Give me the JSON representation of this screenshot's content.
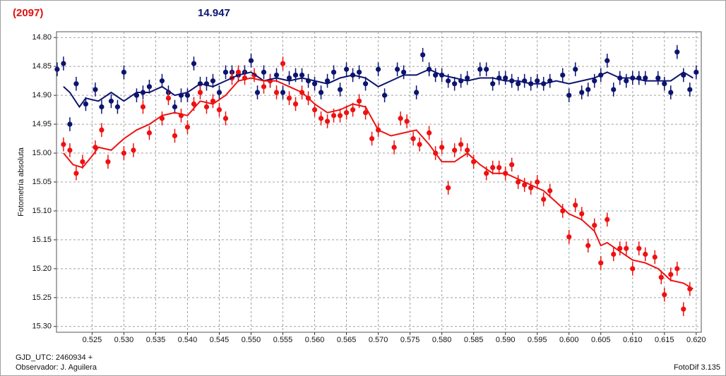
{
  "chart_data": {
    "type": "scatter",
    "title": "(2097)",
    "subtitle": "14.947",
    "ylabel": "Fotometría absoluta",
    "annotations": [
      "GJD_UTC: 2460934 +",
      "Observador: J. Aguilera",
      "FotoDif 3.135"
    ],
    "xlim": [
      0.5194,
      0.6208
    ],
    "ylim": [
      14.79,
      15.31
    ],
    "y_inverted": true,
    "grid": true,
    "xticks": [
      0.525,
      {
        "value": 0.53,
        "label": "0.530"
      },
      0.535,
      {
        "value": 0.54,
        "label": "0.540"
      },
      0.545,
      {
        "value": 0.55,
        "label": "0.550"
      },
      0.555,
      {
        "value": 0.56,
        "label": "0.560"
      },
      0.565,
      {
        "value": 0.57,
        "label": "0.570"
      },
      0.575,
      {
        "value": 0.58,
        "label": "0.580"
      },
      0.585,
      {
        "value": 0.59,
        "label": "0.590"
      },
      0.595,
      {
        "value": 0.6,
        "label": "0.600"
      },
      0.605,
      {
        "value": 0.61,
        "label": "0.610"
      },
      0.615,
      {
        "value": 0.62,
        "label": "0.620"
      }
    ],
    "yticks": [
      {
        "value": 14.8,
        "label": "14.80"
      },
      14.85,
      {
        "value": 14.9,
        "label": "14.90"
      },
      14.95,
      {
        "value": 15,
        "label": "15.00"
      },
      15.05,
      {
        "value": 15.1,
        "label": "15.10"
      },
      15.15,
      {
        "value": 15.2,
        "label": "15.20"
      },
      15.25,
      {
        "value": 15.3,
        "label": "15.30"
      }
    ],
    "series": [
      {
        "style": "points",
        "color": "#0c1470",
        "error": 0.012,
        "x": [
          0.5195,
          0.5205,
          0.5215,
          0.5225,
          0.524,
          0.5255,
          0.5265,
          0.528,
          0.529,
          0.53,
          0.532,
          0.533,
          0.534,
          0.536,
          0.537,
          0.538,
          0.539,
          0.54,
          0.541,
          0.542,
          0.543,
          0.544,
          0.545,
          0.546,
          0.547,
          0.548,
          0.549,
          0.55,
          0.551,
          0.552,
          0.553,
          0.554,
          0.555,
          0.556,
          0.557,
          0.558,
          0.559,
          0.56,
          0.561,
          0.562,
          0.563,
          0.564,
          0.565,
          0.566,
          0.567,
          0.568,
          0.57,
          0.571,
          0.573,
          0.574,
          0.576,
          0.577,
          0.578,
          0.579,
          0.58,
          0.581,
          0.582,
          0.583,
          0.584,
          0.586,
          0.587,
          0.588,
          0.589,
          0.59,
          0.591,
          0.592,
          0.593,
          0.594,
          0.595,
          0.596,
          0.597,
          0.599,
          0.6,
          0.601,
          0.602,
          0.603,
          0.604,
          0.605,
          0.606,
          0.607,
          0.608,
          0.609,
          0.61,
          0.611,
          0.612,
          0.614,
          0.615,
          0.616,
          0.617,
          0.618,
          0.619,
          0.62
        ],
        "values": [
          14.855,
          14.845,
          14.95,
          14.88,
          14.915,
          14.89,
          14.92,
          14.91,
          14.92,
          14.86,
          14.9,
          14.895,
          14.885,
          14.875,
          14.895,
          14.92,
          14.9,
          14.9,
          14.845,
          14.88,
          14.88,
          14.875,
          14.895,
          14.86,
          14.86,
          14.865,
          14.86,
          14.84,
          14.895,
          14.86,
          14.875,
          14.865,
          14.895,
          14.87,
          14.865,
          14.865,
          14.875,
          14.88,
          14.895,
          14.875,
          14.86,
          14.89,
          14.855,
          14.865,
          14.86,
          14.88,
          14.855,
          14.9,
          14.855,
          14.86,
          14.895,
          14.83,
          14.855,
          14.865,
          14.865,
          14.875,
          14.88,
          14.875,
          14.87,
          14.855,
          14.855,
          14.88,
          14.87,
          14.87,
          14.875,
          14.88,
          14.875,
          14.88,
          14.875,
          14.88,
          14.875,
          14.865,
          14.9,
          14.855,
          14.895,
          14.89,
          14.875,
          14.865,
          14.84,
          14.89,
          14.87,
          14.875,
          14.87,
          14.87,
          14.87,
          14.87,
          14.88,
          14.895,
          14.825,
          14.865,
          14.89,
          14.86
        ]
      },
      {
        "style": "points",
        "color": "#ee1111",
        "error": 0.012,
        "x": [
          0.5205,
          0.5215,
          0.5225,
          0.5235,
          0.5255,
          0.5265,
          0.5275,
          0.53,
          0.5315,
          0.533,
          0.534,
          0.536,
          0.537,
          0.538,
          0.539,
          0.54,
          0.541,
          0.542,
          0.543,
          0.544,
          0.545,
          0.546,
          0.547,
          0.548,
          0.549,
          0.5505,
          0.552,
          0.553,
          0.554,
          0.555,
          0.556,
          0.557,
          0.558,
          0.559,
          0.56,
          0.561,
          0.562,
          0.563,
          0.564,
          0.565,
          0.566,
          0.567,
          0.568,
          0.569,
          0.57,
          0.5725,
          0.5735,
          0.5745,
          0.5755,
          0.5765,
          0.578,
          0.579,
          0.58,
          0.581,
          0.582,
          0.583,
          0.584,
          0.585,
          0.587,
          0.588,
          0.589,
          0.59,
          0.591,
          0.592,
          0.593,
          0.594,
          0.595,
          0.596,
          0.597,
          0.599,
          0.6,
          0.601,
          0.602,
          0.603,
          0.604,
          0.605,
          0.606,
          0.607,
          0.608,
          0.609,
          0.61,
          0.611,
          0.612,
          0.6135,
          0.6145,
          0.615,
          0.616,
          0.617,
          0.618,
          0.619
        ],
        "values": [
          14.985,
          14.995,
          15.035,
          15.015,
          14.99,
          14.96,
          15.015,
          15.0,
          14.995,
          14.92,
          14.965,
          14.94,
          14.905,
          14.97,
          14.935,
          14.955,
          14.915,
          14.895,
          14.92,
          14.91,
          14.925,
          14.94,
          14.87,
          14.86,
          14.87,
          14.865,
          14.885,
          14.875,
          14.895,
          14.845,
          14.905,
          14.915,
          14.895,
          14.905,
          14.925,
          14.94,
          14.945,
          14.935,
          14.935,
          14.93,
          14.925,
          14.91,
          14.93,
          14.975,
          14.96,
          14.99,
          14.94,
          14.945,
          14.975,
          14.985,
          14.965,
          15.0,
          14.99,
          15.06,
          14.995,
          14.985,
          14.995,
          15.015,
          15.035,
          15.025,
          15.025,
          15.035,
          15.02,
          15.05,
          15.055,
          15.06,
          15.05,
          15.08,
          15.065,
          15.1,
          15.145,
          15.09,
          15.105,
          15.16,
          15.125,
          15.19,
          15.115,
          15.175,
          15.165,
          15.165,
          15.2,
          15.165,
          15.175,
          15.18,
          15.215,
          15.245,
          15.21,
          15.2,
          15.27,
          15.235
        ]
      },
      {
        "style": "line",
        "color": "#0c1470",
        "x": [
          0.5205,
          0.5215,
          0.523,
          0.524,
          0.526,
          0.528,
          0.53,
          0.532,
          0.534,
          0.536,
          0.538,
          0.54,
          0.542,
          0.544,
          0.546,
          0.548,
          0.55,
          0.552,
          0.554,
          0.556,
          0.558,
          0.56,
          0.562,
          0.564,
          0.566,
          0.568,
          0.57,
          0.572,
          0.574,
          0.576,
          0.578,
          0.58,
          0.582,
          0.584,
          0.586,
          0.588,
          0.59,
          0.592,
          0.594,
          0.596,
          0.598,
          0.6,
          0.602,
          0.604,
          0.606,
          0.608,
          0.61,
          0.612,
          0.614,
          0.616,
          0.618,
          0.6195
        ],
        "values": [
          14.885,
          14.895,
          14.92,
          14.905,
          14.91,
          14.895,
          14.91,
          14.895,
          14.895,
          14.885,
          14.9,
          14.895,
          14.88,
          14.885,
          14.875,
          14.865,
          14.86,
          14.875,
          14.87,
          14.875,
          14.87,
          14.875,
          14.88,
          14.87,
          14.865,
          14.87,
          14.885,
          14.875,
          14.865,
          14.865,
          14.855,
          14.865,
          14.87,
          14.875,
          14.87,
          14.87,
          14.875,
          14.875,
          14.88,
          14.88,
          14.875,
          14.88,
          14.875,
          14.87,
          14.86,
          14.87,
          14.87,
          14.875,
          14.875,
          14.875,
          14.86,
          14.87
        ]
      },
      {
        "style": "line",
        "color": "#ee1111",
        "x": [
          0.5205,
          0.522,
          0.5235,
          0.525,
          0.526,
          0.528,
          0.53,
          0.532,
          0.534,
          0.536,
          0.538,
          0.54,
          0.542,
          0.544,
          0.546,
          0.548,
          0.55,
          0.552,
          0.554,
          0.556,
          0.558,
          0.56,
          0.562,
          0.564,
          0.566,
          0.568,
          0.57,
          0.572,
          0.574,
          0.576,
          0.578,
          0.58,
          0.582,
          0.584,
          0.586,
          0.588,
          0.59,
          0.592,
          0.594,
          0.596,
          0.598,
          0.6,
          0.602,
          0.604,
          0.605,
          0.606,
          0.608,
          0.61,
          0.612,
          0.614,
          0.616,
          0.618,
          0.6195
        ],
        "values": [
          15.0,
          15.02,
          15.025,
          15.005,
          14.99,
          14.995,
          14.975,
          14.96,
          14.95,
          14.935,
          14.93,
          14.935,
          14.91,
          14.915,
          14.9,
          14.875,
          14.87,
          14.875,
          14.875,
          14.885,
          14.895,
          14.915,
          14.93,
          14.925,
          14.915,
          14.92,
          14.96,
          14.97,
          14.965,
          14.96,
          14.985,
          15.015,
          15.015,
          15.0,
          15.02,
          15.035,
          15.035,
          15.045,
          15.055,
          15.065,
          15.085,
          15.105,
          15.115,
          15.135,
          15.16,
          15.155,
          15.17,
          15.185,
          15.19,
          15.2,
          15.22,
          15.225,
          15.235
        ]
      }
    ]
  }
}
